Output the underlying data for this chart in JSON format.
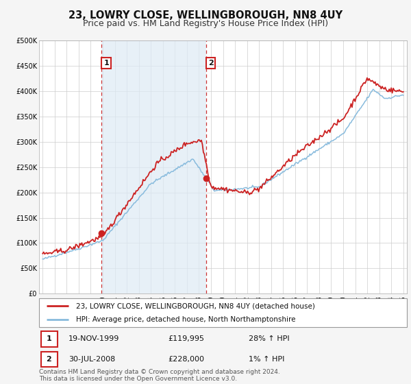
{
  "title": "23, LOWRY CLOSE, WELLINGBOROUGH, NN8 4UY",
  "subtitle": "Price paid vs. HM Land Registry's House Price Index (HPI)",
  "bg_color": "#f5f5f5",
  "plot_bg_color": "#ffffff",
  "grid_color": "#cccccc",
  "xmin": 1994.7,
  "xmax": 2025.3,
  "ymin": 0,
  "ymax": 500000,
  "yticks": [
    0,
    50000,
    100000,
    150000,
    200000,
    250000,
    300000,
    350000,
    400000,
    450000,
    500000
  ],
  "ytick_labels": [
    "£0",
    "£50K",
    "£100K",
    "£150K",
    "£200K",
    "£250K",
    "£300K",
    "£350K",
    "£400K",
    "£450K",
    "£500K"
  ],
  "xticks": [
    1995,
    1996,
    1997,
    1998,
    1999,
    2000,
    2001,
    2002,
    2003,
    2004,
    2005,
    2006,
    2007,
    2008,
    2009,
    2010,
    2011,
    2012,
    2013,
    2014,
    2015,
    2016,
    2017,
    2018,
    2019,
    2020,
    2021,
    2022,
    2023,
    2024,
    2025
  ],
  "marker1_x": 1999.89,
  "marker1_y": 119995,
  "marker1_label": "1",
  "marker2_x": 2008.58,
  "marker2_y": 228000,
  "marker2_label": "2",
  "shade_x1": 1999.89,
  "shade_x2": 2008.58,
  "vline_color": "#cc3333",
  "vline_style": "--",
  "shade_color": "#ddeaf5",
  "shade_alpha": 0.7,
  "red_line_color": "#cc2222",
  "blue_line_color": "#88bbdd",
  "legend_label1": "23, LOWRY CLOSE, WELLINGBOROUGH, NN8 4UY (detached house)",
  "legend_label2": "HPI: Average price, detached house, North Northamptonshire",
  "table_row1": [
    "1",
    "19-NOV-1999",
    "£119,995",
    "28% ↑ HPI"
  ],
  "table_row2": [
    "2",
    "30-JUL-2008",
    "£228,000",
    "1% ↑ HPI"
  ],
  "footer": "Contains HM Land Registry data © Crown copyright and database right 2024.\nThis data is licensed under the Open Government Licence v3.0.",
  "title_fontsize": 10.5,
  "subtitle_fontsize": 9,
  "tick_fontsize": 7,
  "legend_fontsize": 7.5,
  "table_fontsize": 8,
  "footer_fontsize": 6.5
}
